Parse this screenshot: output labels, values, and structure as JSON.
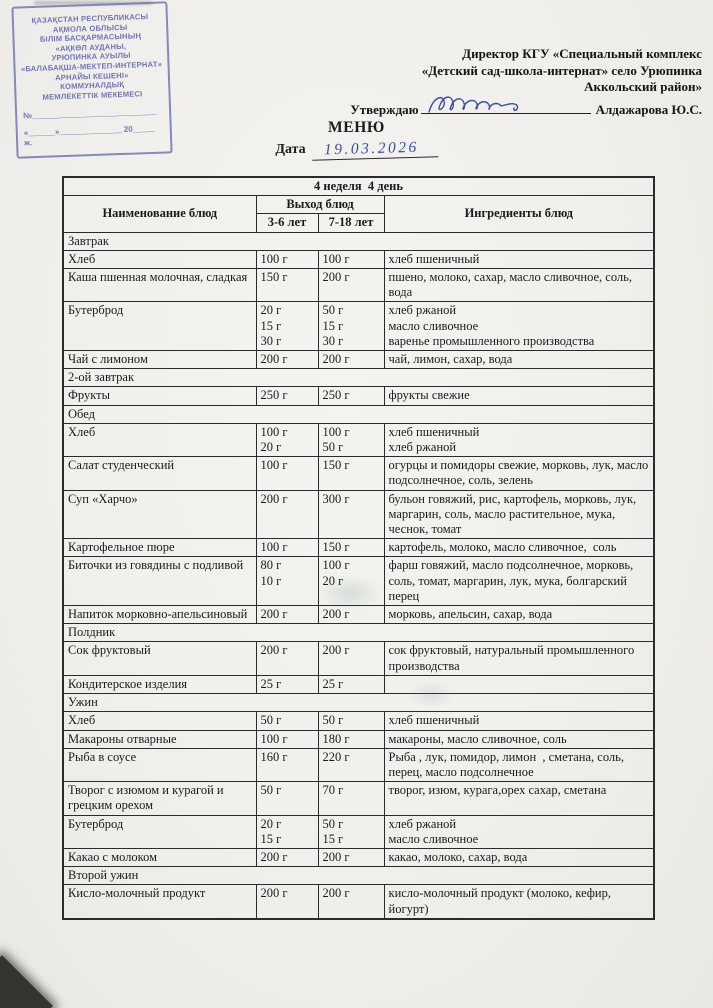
{
  "page": {
    "title": "МЕНЮ",
    "date_label": "Дата",
    "date_value": "19.03.2026"
  },
  "stamp": {
    "lines": [
      "ҚАЗАҚСТАН РЕСПУБЛИКАСЫ",
      "АҚМОЛА ОБЛЫСЫ",
      "БІЛІМ БАСҚАРМАСЫНЫҢ",
      "«АҚКӨЛ АУДАНЫ,",
      "УРЮПИНКА АУЫЛЫ",
      "«БАЛАБАҚША-МЕКТЕП-ИНТЕРНАТ»",
      "АРНАЙЫ КЕШЕНІ»",
      "КОММУНАЛДЫҚ",
      "МЕМЛЕКЕТТІК МЕКЕМЕСІ"
    ],
    "number_line": "№____________________________",
    "date_line": "«______»______________ 20_____ ж."
  },
  "approval": {
    "lines": [
      "Директор КГУ «Специальный комплекс",
      "«Детский сад-школа-интернат» село Урюпинка",
      "Аккольский район»"
    ],
    "approve_label": "Утверждаю",
    "approver_name": "Алдажарова Ю.С.",
    "signature_icon": "signature-scribble"
  },
  "colors": {
    "stamp_ink": "#7074b6",
    "handwriting_ink": "#3a4ea8",
    "paper": "#f0efeb",
    "table_border": "#2b2b2b"
  },
  "table": {
    "week_day": "4 неделя  4 день",
    "columns": {
      "name": "Наименование блюд",
      "output": "Выход блюд",
      "age_3_6": "3-6 лет",
      "age_7_18": "7-18 лет",
      "ingredients": "Ингредиенты блюд"
    },
    "sections": [
      {
        "title": "Завтрак",
        "rows": [
          {
            "name": "Хлеб",
            "portion_3_6": [
              "100 г"
            ],
            "portion_7_18": [
              "100 г"
            ],
            "ingredients": [
              "хлеб пшеничный"
            ]
          },
          {
            "name": "Каша пшенная молочная, сладкая",
            "portion_3_6": [
              "150 г"
            ],
            "portion_7_18": [
              "200 г"
            ],
            "ingredients": [
              "пшено, молоко, сахар, масло сливочное, соль, вода"
            ]
          },
          {
            "name": "Бутерброд",
            "portion_3_6": [
              "20 г",
              "15 г",
              "30 г"
            ],
            "portion_7_18": [
              "50 г",
              "15 г",
              "30 г"
            ],
            "ingredients": [
              "хлеб ржаной",
              "масло сливочное",
              "варенье промышленного производства"
            ]
          },
          {
            "name": "Чай с лимоном",
            "portion_3_6": [
              "200 г"
            ],
            "portion_7_18": [
              "200 г"
            ],
            "ingredients": [
              "чай, лимон, сахар, вода"
            ]
          }
        ]
      },
      {
        "title": "2-ой завтрак",
        "rows": [
          {
            "name": "Фрукты",
            "portion_3_6": [
              "250 г"
            ],
            "portion_7_18": [
              "250 г"
            ],
            "ingredients": [
              "фрукты свежие"
            ]
          }
        ]
      },
      {
        "title": "Обед",
        "rows": [
          {
            "name": "Хлеб",
            "portion_3_6": [
              "100 г",
              "20 г"
            ],
            "portion_7_18": [
              "100 г",
              "50 г"
            ],
            "ingredients": [
              "хлеб пшеничный",
              "хлеб ржаной"
            ]
          },
          {
            "name": "Салат студенческий",
            "portion_3_6": [
              "100 г"
            ],
            "portion_7_18": [
              "150 г"
            ],
            "ingredients": [
              "огурцы и помидоры свежие, морковь, лук, масло подсолнечное, соль, зелень"
            ]
          },
          {
            "name": "Суп «Харчо»",
            "portion_3_6": [
              "200 г"
            ],
            "portion_7_18": [
              "300 г"
            ],
            "ingredients": [
              "бульон говяжий, рис, картофель, морковь, лук, маргарин, соль, масло растительное, мука, чеснок, томат"
            ]
          },
          {
            "name": "Картофельное пюре",
            "portion_3_6": [
              "100 г"
            ],
            "portion_7_18": [
              "150 г"
            ],
            "ingredients": [
              "картофель, молоко, масло сливочное,  соль"
            ]
          },
          {
            "name": "Биточки из говядины с подливой",
            "portion_3_6": [
              "80 г",
              "10 г"
            ],
            "portion_7_18": [
              "100 г",
              "20 г"
            ],
            "ingredients": [
              "фарш говяжий, масло подсолнечное, морковь, соль, томат, маргарин, лук, мука, болгарский перец"
            ]
          },
          {
            "name": "Напиток морковно-апельсиновый",
            "portion_3_6": [
              "200 г"
            ],
            "portion_7_18": [
              "200 г"
            ],
            "ingredients": [
              "морковь, апельсин, сахар, вода"
            ]
          }
        ]
      },
      {
        "title": "Полдник",
        "rows": [
          {
            "name": "Сок фруктовый",
            "portion_3_6": [
              "200 г"
            ],
            "portion_7_18": [
              "200 г"
            ],
            "ingredients": [
              "сок фруктовый, натуральный промышленного производства"
            ]
          },
          {
            "name": "Кондитерское изделия",
            "portion_3_6": [
              "25 г"
            ],
            "portion_7_18": [
              "25 г"
            ],
            "ingredients": []
          }
        ]
      },
      {
        "title": "Ужин",
        "rows": [
          {
            "name": "Хлеб",
            "portion_3_6": [
              "50 г"
            ],
            "portion_7_18": [
              "50 г"
            ],
            "ingredients": [
              "хлеб пшеничный"
            ]
          },
          {
            "name": "Макароны отварные",
            "portion_3_6": [
              "100 г"
            ],
            "portion_7_18": [
              "180 г"
            ],
            "ingredients": [
              "макароны, масло сливочное, соль"
            ]
          },
          {
            "name": "Рыба в соусе",
            "portion_3_6": [
              "160 г"
            ],
            "portion_7_18": [
              "220 г"
            ],
            "ingredients": [
              "Рыба , лук, помидор, лимон  , сметана, соль, перец, масло подсолнечное"
            ]
          },
          {
            "name": "Творог с изюмом и курагой и грецким орехом",
            "portion_3_6": [
              "50 г"
            ],
            "portion_7_18": [
              "70 г"
            ],
            "ingredients": [
              "творог, изюм, курага,орех сахар, сметана"
            ]
          },
          {
            "name": "Бутерброд",
            "portion_3_6": [
              "20 г",
              "15 г"
            ],
            "portion_7_18": [
              "50 г",
              "15 г"
            ],
            "ingredients": [
              "хлеб ржаной",
              "масло сливочное"
            ]
          },
          {
            "name": "Какао с молоком",
            "portion_3_6": [
              "200 г"
            ],
            "portion_7_18": [
              "200 г"
            ],
            "ingredients": [
              "какао, молоко, сахар, вода"
            ]
          }
        ]
      },
      {
        "title": "Второй ужин",
        "rows": [
          {
            "name": "Кисло-молочный продукт",
            "portion_3_6": [
              "200 г"
            ],
            "portion_7_18": [
              "200 г"
            ],
            "ingredients": [
              "кисло-молочный продукт (молоко, кефир, йогурт)"
            ]
          }
        ]
      }
    ]
  }
}
